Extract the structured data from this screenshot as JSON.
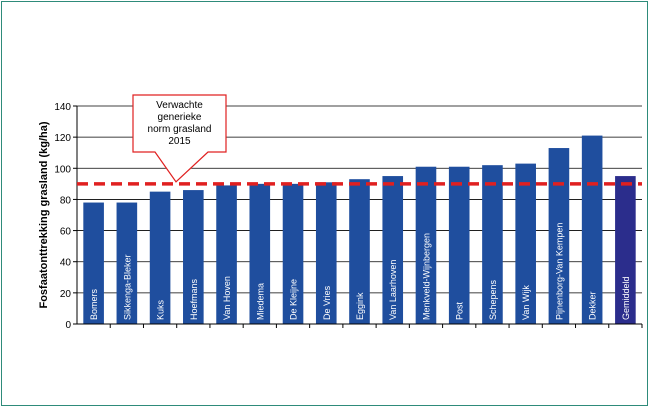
{
  "chart_data": {
    "type": "bar",
    "ylabel": "Fosfaatonttrekking grasland (kg/ha)",
    "ylim": [
      0,
      140
    ],
    "yticks": [
      0,
      20,
      40,
      60,
      80,
      100,
      120,
      140
    ],
    "grid": "horizontal",
    "categories": [
      "Bomers",
      "Sikkenga-Bleker",
      "Kuks",
      "Hoefmans",
      "Van Hoven",
      "Miedema",
      "De Kleijne",
      "De Vries",
      "Eggink",
      "Van Laarhoven",
      "Menkveld-Wijnbergen",
      "Post",
      "Schepens",
      "Van Wijk",
      "Pijnenborg-Van Kempen",
      "Dekker",
      "Gemiddeld"
    ],
    "values": [
      78,
      78,
      85,
      86,
      89,
      90,
      90,
      91,
      93,
      95,
      101,
      101,
      102,
      103,
      113,
      121,
      95
    ],
    "bar_color": "#1f4e9e",
    "highlight_color": "#2b2d8c",
    "reference_line": {
      "value": 90,
      "color": "#e02020",
      "annotation": [
        "Verwachte",
        "generieke",
        "norm grasland",
        "2015"
      ]
    }
  }
}
